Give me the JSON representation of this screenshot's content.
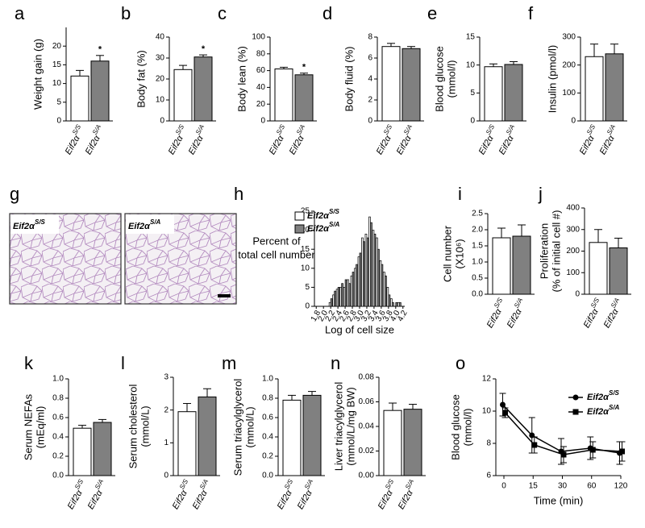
{
  "gene": "Eif2α",
  "chart_data": [
    {
      "panel": "a",
      "type": "bar",
      "ylabel": [
        "Weight gain (g)"
      ],
      "categories": [
        "S/S",
        "S/A"
      ],
      "values": [
        12,
        16
      ],
      "errors": [
        1.5,
        1.5
      ],
      "colors": [
        "#ffffff",
        "#808080"
      ],
      "value_annotations": [
        null,
        "*"
      ],
      "ylim": [
        0,
        25
      ],
      "yticks": [
        0,
        5,
        10,
        15,
        20
      ]
    },
    {
      "panel": "b",
      "type": "bar",
      "ylabel": [
        "Body fat (%)"
      ],
      "categories": [
        "S/S",
        "S/A"
      ],
      "values": [
        24.5,
        30.5
      ],
      "errors": [
        2,
        1
      ],
      "colors": [
        "#ffffff",
        "#808080"
      ],
      "value_annotations": [
        null,
        "*"
      ],
      "ylim": [
        0,
        40
      ],
      "yticks": [
        0,
        10,
        20,
        30,
        40
      ]
    },
    {
      "panel": "c",
      "type": "bar",
      "ylabel": [
        "Body lean (%)"
      ],
      "categories": [
        "S/S",
        "S/A"
      ],
      "values": [
        62,
        55
      ],
      "errors": [
        2,
        2
      ],
      "colors": [
        "#ffffff",
        "#808080"
      ],
      "value_annotations": [
        null,
        "*"
      ],
      "ylim": [
        0,
        100
      ],
      "yticks": [
        0,
        20,
        40,
        60,
        80,
        100
      ]
    },
    {
      "panel": "d",
      "type": "bar",
      "ylabel": [
        "Body fluid (%)"
      ],
      "categories": [
        "S/S",
        "S/A"
      ],
      "values": [
        7.1,
        6.9
      ],
      "errors": [
        0.3,
        0.2
      ],
      "colors": [
        "#ffffff",
        "#808080"
      ],
      "ylim": [
        0,
        8
      ],
      "yticks": [
        0,
        2,
        4,
        6,
        8
      ]
    },
    {
      "panel": "e",
      "type": "bar",
      "ylabel": [
        "Blood glucose",
        "(mmol/l)"
      ],
      "categories": [
        "S/S",
        "S/A"
      ],
      "values": [
        9.7,
        10.1
      ],
      "errors": [
        0.5,
        0.5
      ],
      "colors": [
        "#ffffff",
        "#808080"
      ],
      "ylim": [
        0,
        15
      ],
      "yticks": [
        0,
        5,
        10,
        15
      ]
    },
    {
      "panel": "f",
      "type": "bar",
      "ylabel": [
        "Insulin (pmol/l)"
      ],
      "categories": [
        "S/S",
        "S/A"
      ],
      "values": [
        230,
        240
      ],
      "errors": [
        45,
        35
      ],
      "colors": [
        "#ffffff",
        "#808080"
      ],
      "ylim": [
        0,
        300
      ],
      "yticks": [
        0,
        100,
        200,
        300
      ]
    },
    {
      "panel": "g",
      "type": "image",
      "categories": [
        "S/S",
        "S/A"
      ]
    },
    {
      "panel": "h",
      "type": "histogram",
      "ylabel": [
        "Percent of",
        "total cell number"
      ],
      "xlabel": "Log of cell size",
      "x": [
        2.2,
        2.3,
        2.4,
        2.5,
        2.6,
        2.7,
        2.8,
        2.9,
        3.0,
        3.1,
        3.2,
        3.3,
        3.4,
        3.5,
        3.6,
        3.7,
        3.8,
        3.9,
        4.0,
        4.1
      ],
      "series": [
        {
          "name": "S/S",
          "color": "#ffffff",
          "values": [
            1,
            3,
            4.5,
            5,
            5,
            7,
            8,
            10,
            13,
            18,
            19,
            23.5,
            20,
            18,
            12,
            9,
            5,
            2,
            0,
            1
          ]
        },
        {
          "name": "S/A",
          "color": "#808080",
          "values": [
            2,
            4,
            5,
            6,
            7,
            6,
            9,
            11,
            14,
            17,
            18,
            22,
            19,
            15,
            11,
            8,
            3,
            1,
            1,
            1
          ]
        }
      ],
      "xlim": [
        1.75,
        4.25
      ],
      "xticks": [
        1.8,
        {
          "value": 2,
          "label": "2.0"
        },
        2.2,
        2.4,
        2.6,
        2.8,
        {
          "value": 3,
          "label": "3.0"
        },
        3.2,
        3.4,
        3.6,
        3.8,
        {
          "value": 4,
          "label": "4.0"
        },
        4.2
      ],
      "ylim": [
        0,
        25
      ],
      "yticks": [
        0,
        5,
        10,
        15,
        20,
        25
      ]
    },
    {
      "panel": "i",
      "type": "bar",
      "ylabel": [
        "Cell number",
        "(X10⁶)"
      ],
      "categories": [
        "S/S",
        "S/A"
      ],
      "values": [
        1.75,
        1.8
      ],
      "errors": [
        0.3,
        0.35
      ],
      "colors": [
        "#ffffff",
        "#808080"
      ],
      "ylim": [
        0,
        2.5
      ],
      "yticks": [
        {
          "value": 0,
          "label": "0.0"
        },
        0.5,
        {
          "value": 1,
          "label": "1.0"
        },
        1.5,
        {
          "value": 2,
          "label": "2.0"
        },
        2.5
      ]
    },
    {
      "panel": "j",
      "type": "bar",
      "ylabel": [
        "Proliferation",
        "(% of initial cell #)"
      ],
      "categories": [
        "S/S",
        "S/A"
      ],
      "values": [
        240,
        215
      ],
      "errors": [
        60,
        45
      ],
      "colors": [
        "#ffffff",
        "#808080"
      ],
      "ylim": [
        0,
        400
      ],
      "yticks": [
        0,
        100,
        200,
        300,
        400
      ]
    },
    {
      "panel": "k",
      "type": "bar",
      "ylabel": [
        "Serum NEFAs",
        "(mEq/ml)"
      ],
      "categories": [
        "S/S",
        "S/A"
      ],
      "values": [
        0.49,
        0.55
      ],
      "errors": [
        0.03,
        0.03
      ],
      "colors": [
        "#ffffff",
        "#808080"
      ],
      "ylim": [
        0,
        1
      ],
      "yticks": [
        {
          "value": 0,
          "label": "0.0"
        },
        0.2,
        0.4,
        0.6,
        0.8,
        {
          "value": 1,
          "label": "1.0"
        }
      ]
    },
    {
      "panel": "l",
      "type": "bar",
      "ylabel": [
        "Serum cholesterol",
        "(mmol/L)"
      ],
      "categories": [
        "S/S",
        "S/A"
      ],
      "values": [
        1.95,
        2.4
      ],
      "errors": [
        0.25,
        0.25
      ],
      "colors": [
        "#ffffff",
        "#808080"
      ],
      "ylim": [
        0,
        3
      ],
      "yticks": [
        0,
        1,
        2,
        3
      ]
    },
    {
      "panel": "m",
      "type": "bar",
      "ylabel": [
        "Serum triacylglycerol",
        "(mmol/L)"
      ],
      "categories": [
        "S/S",
        "S/A"
      ],
      "values": [
        0.78,
        0.83
      ],
      "errors": [
        0.05,
        0.04
      ],
      "colors": [
        "#ffffff",
        "#808080"
      ],
      "ylim": [
        0,
        1
      ],
      "yticks": [
        {
          "value": 0,
          "label": "0.0"
        },
        0.2,
        0.4,
        0.6,
        0.8,
        {
          "value": 1,
          "label": "1.0"
        }
      ]
    },
    {
      "panel": "n",
      "type": "bar",
      "ylabel": [
        "Liver triacylglycerol",
        "(mmol/L/mg BW)"
      ],
      "categories": [
        "S/S",
        "S/A"
      ],
      "values": [
        0.053,
        0.054
      ],
      "errors": [
        0.006,
        0.004
      ],
      "colors": [
        "#ffffff",
        "#808080"
      ],
      "ylim": [
        0,
        0.08
      ],
      "yticks": [
        {
          "value": 0,
          "label": "0.00"
        },
        0.02,
        0.04,
        0.06,
        0.08
      ]
    },
    {
      "panel": "o",
      "type": "line",
      "ylabel": [
        "Blood glucose",
        "(mmol/l)"
      ],
      "xlabel": "Time (min)",
      "categories": [
        "0",
        "15",
        "30",
        "60",
        "120"
      ],
      "series": [
        {
          "name": "S/S",
          "color": "#000000",
          "marker": "circle",
          "values": [
            10.4,
            8.5,
            7.5,
            7.7,
            7.4
          ],
          "errors": [
            0.7,
            1.1,
            0.8,
            0.7,
            0.7
          ]
        },
        {
          "name": "S/A",
          "color": "#000000",
          "marker": "square",
          "values": [
            9.9,
            7.9,
            7.3,
            7.6,
            7.5
          ],
          "errors": [
            0.3,
            0.5,
            0.5,
            0.5,
            0.6
          ]
        }
      ],
      "ylim": [
        6,
        12
      ],
      "yticks": [
        6,
        8,
        10,
        12
      ],
      "legend": "upper right"
    }
  ]
}
